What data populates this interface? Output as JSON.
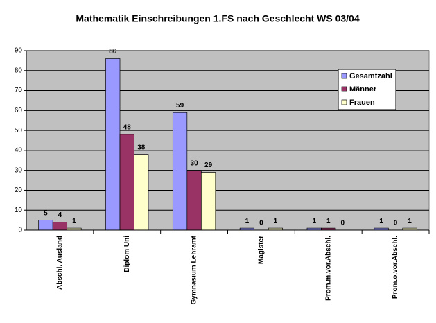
{
  "chart_data": {
    "type": "bar",
    "title": "Mathematik Einschreibungen 1.FS nach Geschlecht WS 03/04",
    "categories": [
      "Abschl. Ausland",
      "Diplom Uni",
      "Gymnasium Lehramt",
      "Magister",
      "Prom.m.vor.Abschl.",
      "Prom.o.vor.Abschl."
    ],
    "series": [
      {
        "name": "Gesamtzahl",
        "color": "#9999ff",
        "values": [
          5,
          86,
          59,
          1,
          1,
          1
        ]
      },
      {
        "name": "Männer",
        "color": "#993366",
        "values": [
          4,
          48,
          30,
          0,
          1,
          0
        ]
      },
      {
        "name": "Frauen",
        "color": "#ffffcc",
        "values": [
          1,
          38,
          29,
          1,
          0,
          1
        ]
      }
    ],
    "ylim": [
      0,
      90
    ],
    "yticks": [
      0,
      10,
      20,
      30,
      40,
      50,
      60,
      70,
      80,
      90
    ],
    "grid": true,
    "legend": "top-right",
    "plot_background": "#c0c0c0"
  }
}
